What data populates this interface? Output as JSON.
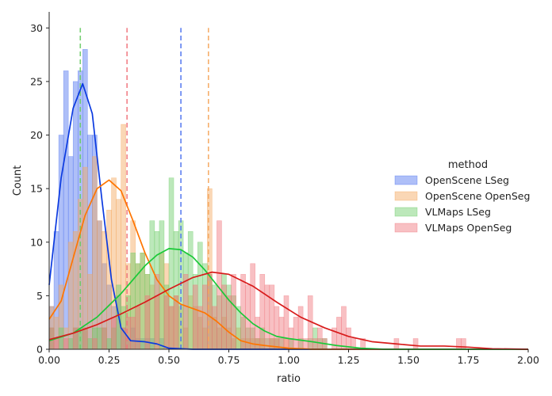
{
  "chart_data": {
    "type": "histogram",
    "xlabel": "ratio",
    "ylabel": "Count",
    "xlim": [
      0,
      2.0
    ],
    "ylim": [
      0,
      31.5
    ],
    "xticks": [
      "0.00",
      "0.25",
      "0.50",
      "0.75",
      "1.00",
      "1.25",
      "1.50",
      "1.75",
      "2.00"
    ],
    "yticks": [
      "0",
      "5",
      "10",
      "15",
      "20",
      "25",
      "30"
    ],
    "legend": {
      "title": "method",
      "placement": "center-right"
    },
    "bin_width": 0.02,
    "grid": false,
    "series": [
      {
        "name": "OpenScene LSeg",
        "color": "#4c72f0",
        "kde_color": "#0b3ae0",
        "vline": 0.55,
        "bins": [
          [
            0.0,
            4
          ],
          [
            0.02,
            11
          ],
          [
            0.04,
            20
          ],
          [
            0.06,
            26
          ],
          [
            0.08,
            18
          ],
          [
            0.1,
            25
          ],
          [
            0.12,
            26
          ],
          [
            0.14,
            28
          ],
          [
            0.16,
            20
          ],
          [
            0.18,
            20
          ],
          [
            0.2,
            12
          ],
          [
            0.22,
            8
          ],
          [
            0.24,
            6
          ],
          [
            0.26,
            4
          ],
          [
            0.28,
            5
          ],
          [
            0.3,
            2
          ],
          [
            0.32,
            1
          ],
          [
            0.34,
            2
          ],
          [
            0.36,
            1
          ],
          [
            0.38,
            1
          ],
          [
            0.4,
            1
          ],
          [
            0.42,
            1
          ],
          [
            0.44,
            0
          ],
          [
            0.46,
            1
          ]
        ],
        "kde": [
          [
            0.0,
            6.0
          ],
          [
            0.05,
            16.0
          ],
          [
            0.1,
            22.5
          ],
          [
            0.14,
            24.8
          ],
          [
            0.18,
            22.0
          ],
          [
            0.22,
            14.0
          ],
          [
            0.26,
            6.5
          ],
          [
            0.3,
            2.0
          ],
          [
            0.34,
            0.8
          ],
          [
            0.4,
            0.7
          ],
          [
            0.45,
            0.5
          ],
          [
            0.5,
            0.1
          ],
          [
            0.6,
            0.0
          ],
          [
            2.0,
            0.0
          ]
        ]
      },
      {
        "name": "OpenScene OpenSeg",
        "color": "#f5a65b",
        "kde_color": "#ff7500",
        "vline": 0.665,
        "bins": [
          [
            0.0,
            4
          ],
          [
            0.02,
            3
          ],
          [
            0.04,
            6
          ],
          [
            0.06,
            2
          ],
          [
            0.08,
            10
          ],
          [
            0.1,
            11
          ],
          [
            0.12,
            14
          ],
          [
            0.14,
            17
          ],
          [
            0.16,
            7
          ],
          [
            0.18,
            18
          ],
          [
            0.2,
            12
          ],
          [
            0.22,
            11
          ],
          [
            0.24,
            13
          ],
          [
            0.26,
            16
          ],
          [
            0.28,
            14
          ],
          [
            0.3,
            21
          ],
          [
            0.32,
            8
          ],
          [
            0.34,
            12
          ],
          [
            0.36,
            8
          ],
          [
            0.38,
            9
          ],
          [
            0.4,
            7
          ],
          [
            0.42,
            6
          ],
          [
            0.44,
            5
          ],
          [
            0.46,
            9
          ],
          [
            0.48,
            8
          ],
          [
            0.5,
            4
          ],
          [
            0.52,
            5
          ],
          [
            0.54,
            4
          ],
          [
            0.56,
            2
          ],
          [
            0.58,
            5
          ],
          [
            0.6,
            4
          ],
          [
            0.62,
            3
          ],
          [
            0.64,
            2
          ],
          [
            0.66,
            15
          ],
          [
            0.68,
            3
          ],
          [
            0.7,
            2
          ],
          [
            0.72,
            3
          ],
          [
            0.74,
            2
          ],
          [
            0.76,
            1
          ],
          [
            0.78,
            2
          ],
          [
            0.8,
            1
          ],
          [
            0.82,
            1
          ],
          [
            0.84,
            1
          ],
          [
            0.86,
            1
          ],
          [
            0.88,
            1
          ],
          [
            0.9,
            0
          ],
          [
            0.92,
            1
          ],
          [
            0.94,
            1
          ],
          [
            0.96,
            0
          ],
          [
            0.98,
            1
          ]
        ],
        "kde": [
          [
            0.0,
            2.8
          ],
          [
            0.05,
            4.5
          ],
          [
            0.1,
            8.5
          ],
          [
            0.15,
            12.5
          ],
          [
            0.2,
            15.0
          ],
          [
            0.25,
            15.8
          ],
          [
            0.3,
            14.8
          ],
          [
            0.35,
            12.0
          ],
          [
            0.4,
            9.0
          ],
          [
            0.45,
            6.5
          ],
          [
            0.5,
            5.0
          ],
          [
            0.55,
            4.2
          ],
          [
            0.6,
            3.8
          ],
          [
            0.65,
            3.4
          ],
          [
            0.7,
            2.6
          ],
          [
            0.75,
            1.6
          ],
          [
            0.8,
            0.8
          ],
          [
            0.85,
            0.5
          ],
          [
            0.9,
            0.35
          ],
          [
            1.0,
            0.1
          ],
          [
            1.1,
            0.0
          ],
          [
            2.0,
            0.0
          ]
        ]
      },
      {
        "name": "VLMaps LSeg",
        "color": "#6acc65",
        "kde_color": "#1ac938",
        "vline": 0.13,
        "bins": [
          [
            0.0,
            2
          ],
          [
            0.04,
            2
          ],
          [
            0.08,
            1
          ],
          [
            0.1,
            2
          ],
          [
            0.12,
            2
          ],
          [
            0.14,
            2
          ],
          [
            0.16,
            1
          ],
          [
            0.18,
            2
          ],
          [
            0.2,
            2
          ],
          [
            0.22,
            2
          ],
          [
            0.24,
            1
          ],
          [
            0.26,
            2
          ],
          [
            0.28,
            6
          ],
          [
            0.3,
            4
          ],
          [
            0.32,
            5
          ],
          [
            0.34,
            9
          ],
          [
            0.36,
            8
          ],
          [
            0.38,
            9
          ],
          [
            0.4,
            7
          ],
          [
            0.42,
            12
          ],
          [
            0.44,
            11
          ],
          [
            0.46,
            12
          ],
          [
            0.48,
            6
          ],
          [
            0.5,
            16
          ],
          [
            0.52,
            11
          ],
          [
            0.54,
            12
          ],
          [
            0.56,
            9
          ],
          [
            0.58,
            11
          ],
          [
            0.6,
            7
          ],
          [
            0.62,
            10
          ],
          [
            0.64,
            8
          ],
          [
            0.66,
            7
          ],
          [
            0.68,
            6
          ],
          [
            0.7,
            5
          ],
          [
            0.72,
            7
          ],
          [
            0.74,
            6
          ],
          [
            0.76,
            5
          ],
          [
            0.78,
            4
          ],
          [
            0.8,
            3
          ],
          [
            0.82,
            2
          ],
          [
            0.84,
            2
          ],
          [
            0.86,
            1
          ],
          [
            0.88,
            2
          ],
          [
            0.9,
            1
          ],
          [
            0.92,
            1
          ],
          [
            0.94,
            1
          ],
          [
            0.96,
            1
          ],
          [
            1.0,
            1
          ],
          [
            1.04,
            1
          ],
          [
            1.08,
            1
          ],
          [
            1.1,
            2
          ],
          [
            1.12,
            1
          ],
          [
            1.14,
            1
          ]
        ],
        "kde": [
          [
            0.0,
            0.8
          ],
          [
            0.1,
            1.5
          ],
          [
            0.2,
            3.0
          ],
          [
            0.3,
            5.2
          ],
          [
            0.4,
            7.8
          ],
          [
            0.45,
            8.8
          ],
          [
            0.5,
            9.4
          ],
          [
            0.55,
            9.3
          ],
          [
            0.6,
            8.6
          ],
          [
            0.65,
            7.4
          ],
          [
            0.7,
            6.0
          ],
          [
            0.75,
            4.6
          ],
          [
            0.8,
            3.4
          ],
          [
            0.85,
            2.4
          ],
          [
            0.9,
            1.7
          ],
          [
            0.95,
            1.2
          ],
          [
            1.0,
            1.0
          ],
          [
            1.1,
            0.7
          ],
          [
            1.2,
            0.35
          ],
          [
            1.3,
            0.1
          ],
          [
            1.4,
            0.0
          ],
          [
            2.0,
            0.0
          ]
        ]
      },
      {
        "name": "VLMaps OpenSeg",
        "color": "#f0737b",
        "kde_color": "#d81b1b",
        "vline": 0.325,
        "bins": [
          [
            0.0,
            2
          ],
          [
            0.02,
            1
          ],
          [
            0.06,
            1
          ],
          [
            0.1,
            2
          ],
          [
            0.14,
            2
          ],
          [
            0.18,
            1
          ],
          [
            0.22,
            2
          ],
          [
            0.26,
            3
          ],
          [
            0.3,
            2
          ],
          [
            0.32,
            3
          ],
          [
            0.34,
            3
          ],
          [
            0.36,
            4
          ],
          [
            0.4,
            5
          ],
          [
            0.44,
            7
          ],
          [
            0.48,
            5
          ],
          [
            0.5,
            4
          ],
          [
            0.52,
            5
          ],
          [
            0.56,
            7
          ],
          [
            0.6,
            6
          ],
          [
            0.62,
            4
          ],
          [
            0.64,
            6
          ],
          [
            0.66,
            7
          ],
          [
            0.68,
            4
          ],
          [
            0.7,
            12
          ],
          [
            0.72,
            6
          ],
          [
            0.74,
            5
          ],
          [
            0.76,
            7
          ],
          [
            0.8,
            7
          ],
          [
            0.82,
            6
          ],
          [
            0.84,
            8
          ],
          [
            0.86,
            3
          ],
          [
            0.88,
            7
          ],
          [
            0.9,
            6
          ],
          [
            0.92,
            6
          ],
          [
            0.94,
            4
          ],
          [
            0.96,
            3
          ],
          [
            0.98,
            5
          ],
          [
            1.0,
            2
          ],
          [
            1.02,
            3
          ],
          [
            1.04,
            4
          ],
          [
            1.06,
            1
          ],
          [
            1.08,
            5
          ],
          [
            1.1,
            1
          ],
          [
            1.12,
            2
          ],
          [
            1.14,
            1
          ],
          [
            1.18,
            2
          ],
          [
            1.2,
            3
          ],
          [
            1.22,
            4
          ],
          [
            1.24,
            2
          ],
          [
            1.26,
            1
          ],
          [
            1.3,
            1
          ],
          [
            1.44,
            1
          ],
          [
            1.52,
            1
          ],
          [
            1.7,
            1
          ],
          [
            1.72,
            1
          ]
        ],
        "kde": [
          [
            0.0,
            0.9
          ],
          [
            0.1,
            1.5
          ],
          [
            0.2,
            2.3
          ],
          [
            0.3,
            3.3
          ],
          [
            0.4,
            4.4
          ],
          [
            0.5,
            5.6
          ],
          [
            0.6,
            6.7
          ],
          [
            0.68,
            7.2
          ],
          [
            0.75,
            7.0
          ],
          [
            0.85,
            5.9
          ],
          [
            0.95,
            4.4
          ],
          [
            1.05,
            3.0
          ],
          [
            1.15,
            2.0
          ],
          [
            1.25,
            1.2
          ],
          [
            1.35,
            0.7
          ],
          [
            1.45,
            0.5
          ],
          [
            1.55,
            0.3
          ],
          [
            1.65,
            0.3
          ],
          [
            1.75,
            0.2
          ],
          [
            1.85,
            0.05
          ],
          [
            2.0,
            0.0
          ]
        ]
      }
    ]
  }
}
